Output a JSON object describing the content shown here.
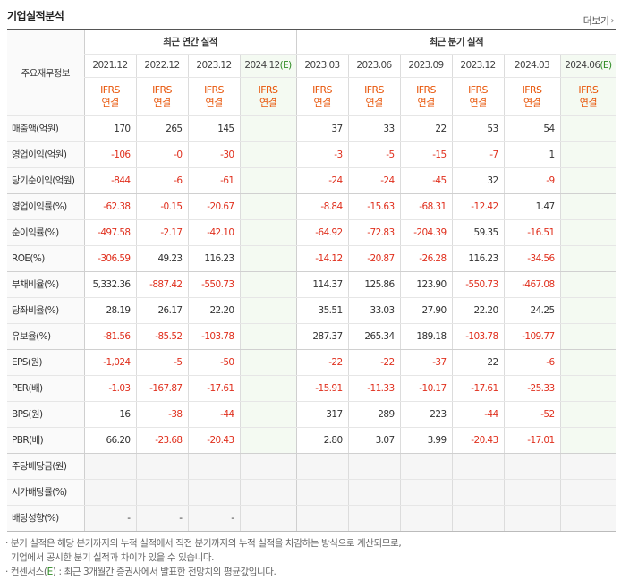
{
  "title": "기업실적분석",
  "more_label": "더보기",
  "more_icon": "chevron-right-icon",
  "corner_label": "주요재무정보",
  "groups": {
    "annual": "최근 연간 실적",
    "quarter": "최근 분기 실적"
  },
  "columns": [
    {
      "date": "2021.12",
      "est": false,
      "std1": "IFRS",
      "std2": "연결"
    },
    {
      "date": "2022.12",
      "est": false,
      "std1": "IFRS",
      "std2": "연결"
    },
    {
      "date": "2023.12",
      "est": false,
      "std1": "IFRS",
      "std2": "연결"
    },
    {
      "date": "2024.12",
      "est": true,
      "est_mark": "(E)",
      "std1": "IFRS",
      "std2": "연결"
    },
    {
      "date": "2023.03",
      "est": false,
      "std1": "IFRS",
      "std2": "연결"
    },
    {
      "date": "2023.06",
      "est": false,
      "std1": "IFRS",
      "std2": "연결"
    },
    {
      "date": "2023.09",
      "est": false,
      "std1": "IFRS",
      "std2": "연결"
    },
    {
      "date": "2023.12",
      "est": false,
      "std1": "IFRS",
      "std2": "연결"
    },
    {
      "date": "2024.03",
      "est": false,
      "std1": "IFRS",
      "std2": "연결"
    },
    {
      "date": "2024.06",
      "est": true,
      "est_mark": "(E)",
      "std1": "IFRS",
      "std2": "연결"
    }
  ],
  "rows": [
    {
      "label": "매출액(억원)",
      "values": [
        "170",
        "265",
        "145",
        "",
        "37",
        "33",
        "22",
        "53",
        "54",
        ""
      ]
    },
    {
      "label": "영업이익(억원)",
      "values": [
        "-106",
        "-0",
        "-30",
        "",
        "-3",
        "-5",
        "-15",
        "-7",
        "1",
        ""
      ]
    },
    {
      "label": "당기순이익(억원)",
      "values": [
        "-844",
        "-6",
        "-61",
        "",
        "-24",
        "-24",
        "-45",
        "32",
        "-9",
        ""
      ],
      "sep": true
    },
    {
      "label": "영업이익률(%)",
      "values": [
        "-62.38",
        "-0.15",
        "-20.67",
        "",
        "-8.84",
        "-15.63",
        "-68.31",
        "-12.42",
        "1.47",
        ""
      ]
    },
    {
      "label": "순이익률(%)",
      "values": [
        "-497.58",
        "-2.17",
        "-42.10",
        "",
        "-64.92",
        "-72.83",
        "-204.39",
        "59.35",
        "-16.51",
        ""
      ]
    },
    {
      "label": "ROE(%)",
      "values": [
        "-306.59",
        "49.23",
        "116.23",
        "",
        "-14.12",
        "-20.87",
        "-26.28",
        "116.23",
        "-34.56",
        ""
      ],
      "sep": true
    },
    {
      "label": "부채비율(%)",
      "values": [
        "5,332.36",
        "-887.42",
        "-550.73",
        "",
        "114.37",
        "125.86",
        "123.90",
        "-550.73",
        "-467.08",
        ""
      ]
    },
    {
      "label": "당좌비율(%)",
      "values": [
        "28.19",
        "26.17",
        "22.20",
        "",
        "35.51",
        "33.03",
        "27.90",
        "22.20",
        "24.25",
        ""
      ]
    },
    {
      "label": "유보율(%)",
      "values": [
        "-81.56",
        "-85.52",
        "-103.78",
        "",
        "287.37",
        "265.34",
        "189.18",
        "-103.78",
        "-109.77",
        ""
      ],
      "sep": true
    },
    {
      "label": "EPS(원)",
      "values": [
        "-1,024",
        "-5",
        "-50",
        "",
        "-22",
        "-22",
        "-37",
        "22",
        "-6",
        ""
      ]
    },
    {
      "label": "PER(배)",
      "values": [
        "-1.03",
        "-167.87",
        "-17.61",
        "",
        "-15.91",
        "-11.33",
        "-10.17",
        "-17.61",
        "-25.33",
        ""
      ]
    },
    {
      "label": "BPS(원)",
      "values": [
        "16",
        "-38",
        "-44",
        "",
        "317",
        "289",
        "223",
        "-44",
        "-52",
        ""
      ]
    },
    {
      "label": "PBR(배)",
      "values": [
        "66.20",
        "-23.68",
        "-20.43",
        "",
        "2.80",
        "3.07",
        "3.99",
        "-20.43",
        "-17.01",
        ""
      ],
      "sep": true
    },
    {
      "label": "주당배당금(원)",
      "values": [
        "",
        "",
        "",
        "",
        "",
        "",
        "",
        "",
        "",
        ""
      ],
      "empty": true
    },
    {
      "label": "시가배당률(%)",
      "values": [
        "",
        "",
        "",
        "",
        "",
        "",
        "",
        "",
        "",
        ""
      ],
      "empty": true
    },
    {
      "label": "배당성향(%)",
      "values": [
        "-",
        "-",
        "-",
        "",
        "",
        "",
        "",
        "",
        "",
        ""
      ],
      "empty": true
    }
  ],
  "notes": {
    "line1": "분기 실적은 해당 분기까지의 누적 실적에서 직전 분기까지의 누적 실적을 차감하는 방식으로 계산되므로,",
    "line2": "기업에서 공시한 분기 실적과 차이가 있을 수 있습니다.",
    "line3_prefix": "컨센서스(",
    "line3_e": "E",
    "line3_suffix": ") : 최근 3개월간 증권사에서 발표한 전망치의 평균값입니다."
  }
}
